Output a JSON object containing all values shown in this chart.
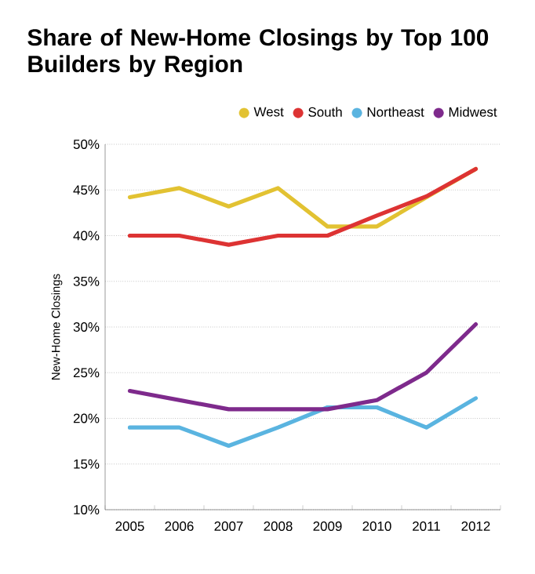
{
  "chart_data": {
    "type": "line",
    "title": "Share of New-Home Closings by Top 100 Builders by Region",
    "ylabel": "New-Home Closings",
    "categories": [
      "2005",
      "2006",
      "2007",
      "2008",
      "2009",
      "2010",
      "2011",
      "2012"
    ],
    "series": [
      {
        "name": "West",
        "color": "#e2c232",
        "values": [
          44.2,
          45.2,
          43.2,
          45.2,
          41,
          41,
          44.2,
          47.3
        ]
      },
      {
        "name": "South",
        "color": "#dd3333",
        "values": [
          40,
          40,
          39,
          40,
          40,
          42.2,
          44.3,
          47.3
        ]
      },
      {
        "name": "Northeast",
        "color": "#5ab4e0",
        "values": [
          19,
          19,
          17,
          19,
          21.2,
          21.2,
          19,
          22.2
        ]
      },
      {
        "name": "Midwest",
        "color": "#7e2a8c",
        "values": [
          23,
          22,
          21,
          21,
          21,
          22,
          25,
          30.3
        ]
      }
    ],
    "ylim": [
      10,
      50
    ],
    "yticks": [
      {
        "value": 10,
        "label": "10%"
      },
      {
        "value": 15,
        "label": "15%"
      },
      {
        "value": 20,
        "label": "20%"
      },
      {
        "value": 25,
        "label": "25%"
      },
      {
        "value": 30,
        "label": "30%"
      },
      {
        "value": 35,
        "label": "35%"
      },
      {
        "value": 40,
        "label": "40%"
      },
      {
        "value": 45,
        "label": "45%"
      },
      {
        "value": 50,
        "label": "50%"
      }
    ],
    "grid": "y",
    "legend": "top right",
    "marker": "none",
    "line_style": "solid"
  }
}
